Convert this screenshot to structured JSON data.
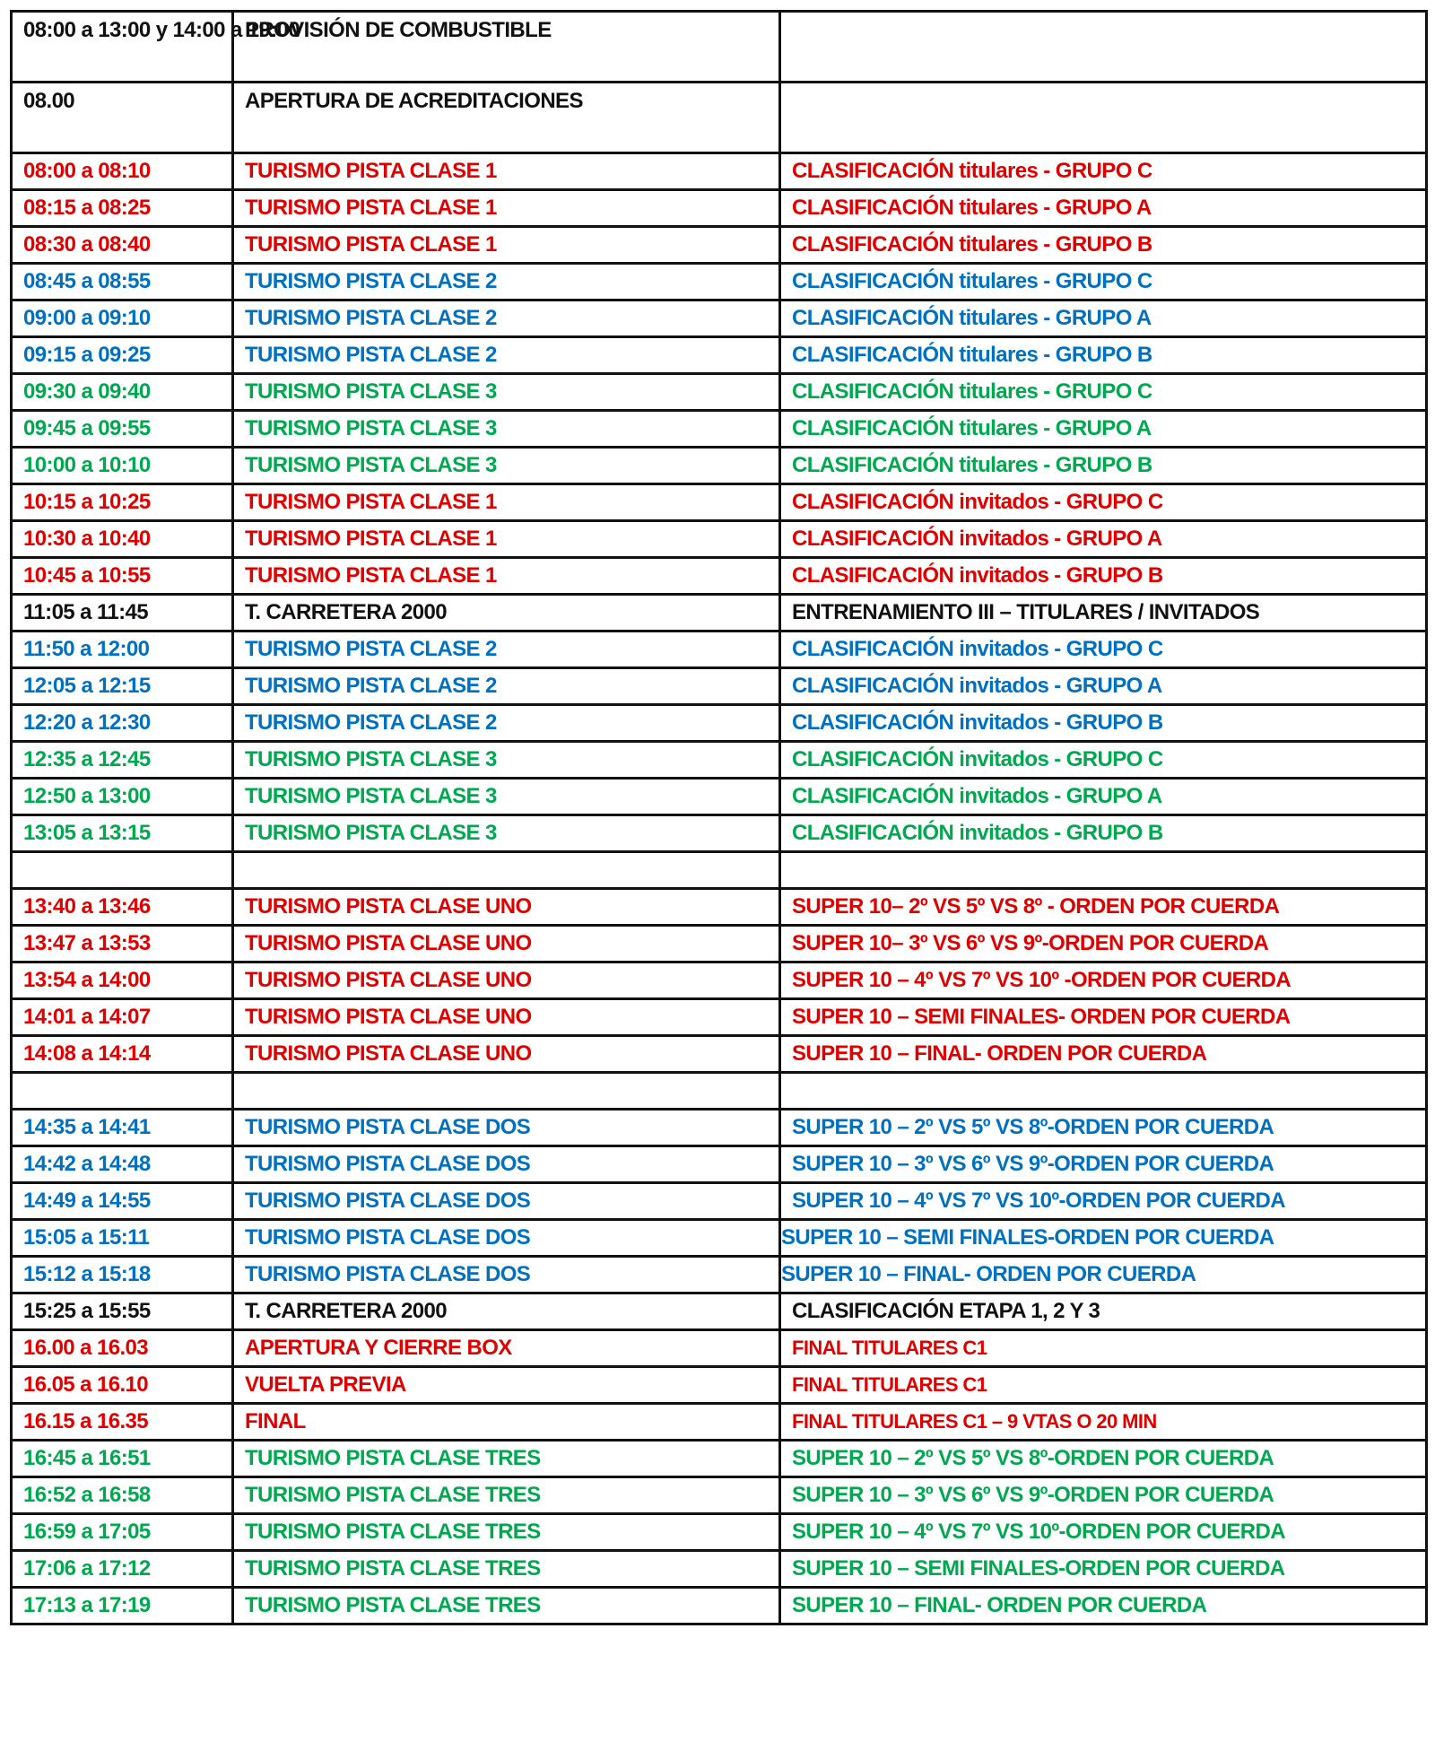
{
  "colors": {
    "black": "#111111",
    "red": "#e00000",
    "blue": "#0070c0",
    "green": "#00a84f"
  },
  "rows": [
    {
      "time": "08:00 a 13:00 y 14:00 a 19:00",
      "event": "PROVISIÓN DE COMBUSTIBLE",
      "detail": "",
      "color": "black"
    },
    {
      "time": "08.00",
      "event": "APERTURA DE ACREDITACIONES",
      "detail": "",
      "color": "black"
    },
    {
      "time": "08:00 a 08:10",
      "event": "TURISMO PISTA CLASE 1",
      "detail": "CLASIFICACIÓN titulares  - GRUPO C",
      "color": "red"
    },
    {
      "time": "08:15 a 08:25",
      "event": "TURISMO PISTA CLASE 1",
      "detail": "CLASIFICACIÓN titulares  - GRUPO A",
      "color": "red"
    },
    {
      "time": "08:30 a 08:40",
      "event": "TURISMO PISTA CLASE 1",
      "detail": "CLASIFICACIÓN titulares  - GRUPO B",
      "color": "red"
    },
    {
      "time": "08:45 a 08:55",
      "event": "TURISMO PISTA CLASE 2",
      "detail": "CLASIFICACIÓN titulares  - GRUPO C",
      "color": "blue"
    },
    {
      "time": "09:00 a 09:10",
      "event": "TURISMO PISTA CLASE 2",
      "detail": "CLASIFICACIÓN titulares  - GRUPO A",
      "color": "blue"
    },
    {
      "time": "09:15 a 09:25",
      "event": "TURISMO PISTA CLASE 2",
      "detail": "CLASIFICACIÓN titulares - GRUPO B",
      "color": "blue"
    },
    {
      "time": "09:30 a 09:40",
      "event": "TURISMO PISTA CLASE 3",
      "detail": "CLASIFICACIÓN titulares  - GRUPO C",
      "color": "green"
    },
    {
      "time": "09:45 a 09:55",
      "event": "TURISMO PISTA CLASE 3",
      "detail": "CLASIFICACIÓN titulares  - GRUPO A",
      "color": "green"
    },
    {
      "time": "10:00 a 10:10",
      "event": "TURISMO PISTA CLASE 3",
      "detail": "CLASIFICACIÓN titulares - GRUPO B",
      "color": "green"
    },
    {
      "time": "10:15 a 10:25",
      "event": "TURISMO PISTA CLASE 1",
      "detail": "CLASIFICACIÓN invitados  - GRUPO C",
      "color": "red"
    },
    {
      "time": "10:30 a 10:40",
      "event": "TURISMO PISTA CLASE 1",
      "detail": "CLASIFICACIÓN invitados  - GRUPO A",
      "color": "red"
    },
    {
      "time": "10:45 a 10:55",
      "event": "TURISMO PISTA CLASE 1",
      "detail": "CLASIFICACIÓN invitados  - GRUPO B",
      "color": "red"
    },
    {
      "time": "11:05 a 11:45",
      "event": "T. CARRETERA 2000",
      "detail": "ENTRENAMIENTO III – TITULARES / INVITADOS",
      "color": "black"
    },
    {
      "time": "11:50 a 12:00",
      "event": "TURISMO PISTA CLASE 2",
      "detail": "CLASIFICACIÓN invitados  - GRUPO C",
      "color": "blue"
    },
    {
      "time": "12:05 a 12:15",
      "event": "TURISMO PISTA CLASE 2",
      "detail": "CLASIFICACIÓN invitados  - GRUPO A",
      "color": "blue"
    },
    {
      "time": "12:20 a 12:30",
      "event": "TURISMO PISTA CLASE 2",
      "detail": "CLASIFICACIÓN invitados - GRUPO B",
      "color": "blue"
    },
    {
      "time": "12:35 a 12:45",
      "event": "TURISMO PISTA CLASE 3",
      "detail": "CLASIFICACIÓN invitados  - GRUPO C",
      "color": "green"
    },
    {
      "time": "12:50 a 13:00",
      "event": "TURISMO PISTA CLASE 3",
      "detail": "CLASIFICACIÓN invitados  - GRUPO A",
      "color": "green"
    },
    {
      "time": "13:05 a 13:15",
      "event": "TURISMO PISTA CLASE 3",
      "detail": "CLASIFICACIÓN invitados - GRUPO B",
      "color": "green"
    },
    {
      "time": "",
      "event": "",
      "detail": "",
      "color": "black"
    },
    {
      "time": "13:40 a 13:46",
      "event": "TURISMO PISTA CLASE UNO",
      "detail": "SUPER 10– 2º VS 5º VS 8º - ORDEN POR CUERDA",
      "color": "red"
    },
    {
      "time": "13:47 a 13:53",
      "event": "TURISMO PISTA CLASE UNO",
      "detail": "SUPER 10– 3º VS 6º VS 9º-ORDEN POR CUERDA",
      "color": "red"
    },
    {
      "time": "13:54 a 14:00",
      "event": "TURISMO PISTA CLASE UNO",
      "detail": "SUPER 10 – 4º VS 7º VS 10º -ORDEN POR CUERDA",
      "color": "red"
    },
    {
      "time": "14:01 a 14:07",
      "event": "TURISMO PISTA CLASE UNO",
      "detail": "SUPER 10 – SEMI FINALES- ORDEN POR CUERDA",
      "color": "red"
    },
    {
      "time": "14:08 a 14:14",
      "event": "TURISMO PISTA CLASE UNO",
      "detail": "SUPER 10 – FINAL- ORDEN POR CUERDA",
      "color": "red"
    },
    {
      "time": "",
      "event": "",
      "detail": "",
      "color": "black"
    },
    {
      "time": "14:35 a 14:41",
      "event": "TURISMO PISTA CLASE DOS",
      "detail": "SUPER 10 – 2º VS 5º VS 8º-ORDEN POR CUERDA",
      "color": "blue"
    },
    {
      "time": "14:42 a 14:48",
      "event": "TURISMO PISTA CLASE DOS",
      "detail": "SUPER 10 – 3º VS 6º VS 9º-ORDEN POR CUERDA",
      "color": "blue"
    },
    {
      "time": "14:49 a 14:55",
      "event": "TURISMO PISTA CLASE DOS",
      "detail": "SUPER 10 – 4º VS 7º VS 10º-ORDEN POR CUERDA",
      "color": "blue"
    },
    {
      "time": "15:05 a 15:11",
      "event": "TURISMO PISTA CLASE DOS",
      "detail": "SUPER 10 – SEMI FINALES-ORDEN POR CUERDA",
      "color": "blue"
    },
    {
      "time": "15:12 a 15:18",
      "event": "TURISMO PISTA CLASE DOS",
      "detail": "SUPER 10 – FINAL- ORDEN POR CUERDA",
      "color": "blue"
    },
    {
      "time": "15:25 a 15:55",
      "event": "T. CARRETERA 2000",
      "detail": "CLASIFICACIÓN ETAPA 1, 2 Y 3",
      "color": "black"
    },
    {
      "time": "16.00 a 16.03",
      "event": "APERTURA Y CIERRE BOX",
      "detail": "FINAL TITULARES C1",
      "color": "red"
    },
    {
      "time": "16.05 a 16.10",
      "event": "VUELTA PREVIA",
      "detail": "FINAL TITULARES C1",
      "color": "red"
    },
    {
      "time": "16.15 a 16.35",
      "event": "FINAL",
      "detail": "FINAL TITULARES C1 – 9 VTAS O 20 MIN",
      "color": "red"
    },
    {
      "time": "16:45 a 16:51",
      "event": "TURISMO PISTA CLASE TRES",
      "detail": "SUPER 10 – 2º VS 5º VS 8º-ORDEN POR CUERDA",
      "color": "green"
    },
    {
      "time": "16:52 a 16:58",
      "event": "TURISMO PISTA CLASE TRES",
      "detail": "SUPER 10 – 3º VS 6º VS 9º-ORDEN POR CUERDA",
      "color": "green"
    },
    {
      "time": "16:59 a 17:05",
      "event": "TURISMO PISTA CLASE TRES",
      "detail": "SUPER 10 – 4º VS 7º VS 10º-ORDEN POR CUERDA",
      "color": "green"
    },
    {
      "time": "17:06 a 17:12",
      "event": "TURISMO PISTA CLASE TRES",
      "detail": "SUPER 10 – SEMI FINALES-ORDEN POR CUERDA",
      "color": "green"
    },
    {
      "time": "17:13 a 17:19",
      "event": "TURISMO PISTA CLASE TRES",
      "detail": "SUPER 10 – FINAL- ORDEN POR CUERDA",
      "color": "green"
    }
  ]
}
